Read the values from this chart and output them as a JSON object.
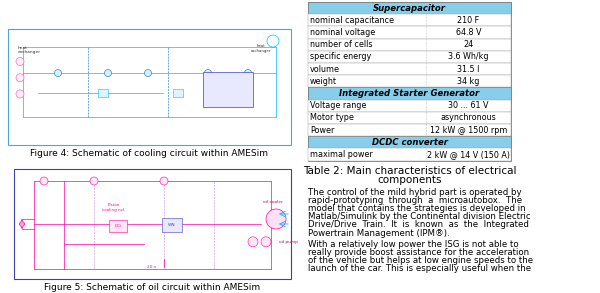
{
  "bg_color": "#ffffff",
  "fig4_caption": "Figure 4: Schematic of cooling circuit within AMESim",
  "fig5_caption": "Figure 5: Schematic of oil circuit within AMESim",
  "table_caption_line1": "Table 2: Main characteristics of electrical",
  "table_caption_line2": "components",
  "table_header_color": "#87ceeb",
  "supercapacitor_rows": [
    [
      "nominal capacitance",
      "210 F"
    ],
    [
      "nominal voltage",
      "64.8 V"
    ],
    [
      "number of cells",
      "24"
    ],
    [
      "specific energy",
      "3.6 Wh/kg"
    ],
    [
      "volume",
      "31.5 l"
    ],
    [
      "weight",
      "34 kg"
    ]
  ],
  "isg_rows": [
    [
      "Voltage range",
      "30 ... 61 V"
    ],
    [
      "Motor type",
      "asynchronous"
    ],
    [
      "Power",
      "12 kW @ 1500 rpm"
    ]
  ],
  "dcdc_rows": [
    [
      "maximal power",
      "2 kW @ 14 V (150 A)"
    ]
  ],
  "p1_lines": [
    "The control of the mild hybrid part is operated by",
    "rapid-prototyping  through  a  microautobox.  The",
    "model that contains the strategies is developed in",
    "Matlab/Simulink by the Continental division Electric",
    "Drive/Drive  Train.  It  is  known  as  the  Integrated",
    "Powertrain Management (IPM®)."
  ],
  "p2_lines": [
    "With a relatively low power the ISG is not able to",
    "really provide boost assistance for the acceleration",
    "of the vehicle but helps at low engine speeds to the",
    "launch of the car. This is especially useful when the"
  ],
  "font_size_caption": 6.5,
  "font_size_table": 5.8,
  "font_size_text": 6.2,
  "font_size_table_caption": 7.5,
  "fig4_box_color": "#4da6d4",
  "fig5_box_color": "#4040a0",
  "fig4_line_color": "#00bfff",
  "fig5_line_color": "#ff00aa",
  "fig5_dashed_color": "#cc88cc"
}
